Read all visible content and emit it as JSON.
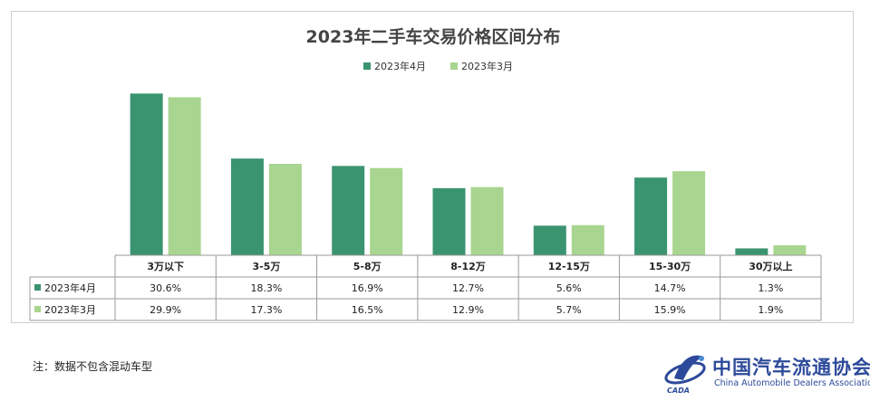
{
  "chart_data": {
    "type": "bar",
    "title": "2023年二手车交易价格区间分布",
    "categories": [
      "3万以下",
      "3-5万",
      "5-8万",
      "8-12万",
      "12-15万",
      "15-30万",
      "30万以上"
    ],
    "series": [
      {
        "name": "2023年4月",
        "values": [
          30.6,
          18.3,
          16.9,
          12.7,
          5.6,
          14.7,
          1.3
        ],
        "labels": [
          "30.6%",
          "18.3%",
          "16.9%",
          "12.7%",
          "5.6%",
          "14.7%",
          "1.3%"
        ],
        "color": "#3a9470"
      },
      {
        "name": "2023年3月",
        "values": [
          29.9,
          17.3,
          16.5,
          12.9,
          5.7,
          15.9,
          1.9
        ],
        "labels": [
          "29.9%",
          "17.3%",
          "16.5%",
          "12.9%",
          "5.7%",
          "15.9%",
          "1.9%"
        ],
        "color": "#a8d58f"
      }
    ],
    "ylim": [
      0,
      31
    ],
    "legend": "top-center",
    "grid": false,
    "data_table": true
  },
  "note": "注：数据不包含混动车型",
  "logo": {
    "name_cn": "中国汽车流通协会",
    "name_en": "China Automobile Dealers Association",
    "abbr": "CADA",
    "color": "#2d4a9a"
  }
}
